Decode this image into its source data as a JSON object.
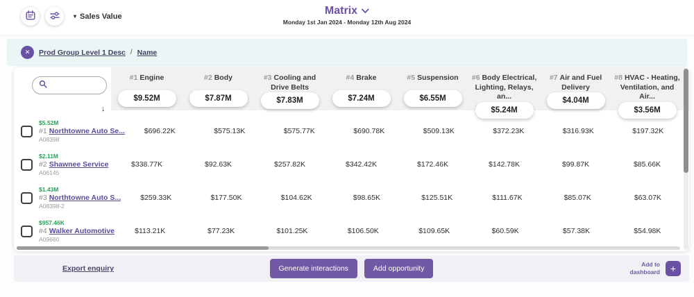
{
  "topbar": {
    "metric_label": "Sales Value",
    "title": "Matrix",
    "date_range": "Monday 1st Jan 2024 - Monday 12th Aug 2024"
  },
  "breadcrumb": {
    "items": [
      "Prod Group Level 1 Desc",
      "Name"
    ],
    "separator": "/"
  },
  "matrix": {
    "search": {
      "value": "",
      "placeholder": ""
    },
    "columns": [
      {
        "rank": "#1",
        "label": "Engine",
        "total": "$9.52M"
      },
      {
        "rank": "#2",
        "label": "Body",
        "total": "$7.87M"
      },
      {
        "rank": "#3",
        "label": "Cooling and Drive Belts",
        "total": "$7.83M"
      },
      {
        "rank": "#4",
        "label": "Brake",
        "total": "$7.24M"
      },
      {
        "rank": "#5",
        "label": "Suspension",
        "total": "$6.55M"
      },
      {
        "rank": "#6",
        "label": "Body Electrical, Lighting, Relays, an...",
        "total": "$5.24M"
      },
      {
        "rank": "#7",
        "label": "Air and Fuel Delivery",
        "total": "$4.04M"
      },
      {
        "rank": "#8",
        "label": "HVAC - Heating, Ventilation, and Air...",
        "total": "$3.56M"
      }
    ],
    "rows": [
      {
        "rank": "#1",
        "name": "Northtowne Auto Se...",
        "total": "$5.52M",
        "account": "A08398",
        "values": [
          "$696.22K",
          "$575.13K",
          "$575.77K",
          "$690.78K",
          "$509.13K",
          "$372.23K",
          "$316.93K",
          "$197.32K"
        ]
      },
      {
        "rank": "#2",
        "name": "Shawnee Service",
        "total": "$2.11M",
        "account": "A06145",
        "values": [
          "$338.77K",
          "$92.63K",
          "$257.82K",
          "$342.42K",
          "$172.46K",
          "$142.78K",
          "$99.87K",
          "$85.66K"
        ]
      },
      {
        "rank": "#3",
        "name": "Northtowne Auto S...",
        "total": "$1.43M",
        "account": "A08398-2",
        "values": [
          "$259.33K",
          "$177.50K",
          "$104.62K",
          "$98.65K",
          "$125.51K",
          "$111.67K",
          "$85.07K",
          "$63.07K"
        ]
      },
      {
        "rank": "#4",
        "name": "Walker Automotive",
        "total": "$957.46K",
        "account": "A09660",
        "values": [
          "$113.21K",
          "$77.23K",
          "$101.25K",
          "$106.50K",
          "$109.65K",
          "$60.59K",
          "$57.38K",
          "$54.98K"
        ]
      }
    ]
  },
  "footer": {
    "export_label": "Export enquiry",
    "generate_label": "Generate interactions",
    "opportunity_label": "Add opportunity",
    "dashboard_label": "Add to dashboard"
  },
  "icons": {
    "caret_down": "▾",
    "close": "✕",
    "sort_down": "↓",
    "plus": "+"
  },
  "colors": {
    "accent_purple": "#6a51a3",
    "button_purple": "#7159a5",
    "link_purple": "#5b4a9b",
    "value_green": "#2aa158",
    "breadcrumb_band": "#e9f6f5",
    "footer_band": "#f1f0f5",
    "header_gray": "#f1f1f1"
  }
}
